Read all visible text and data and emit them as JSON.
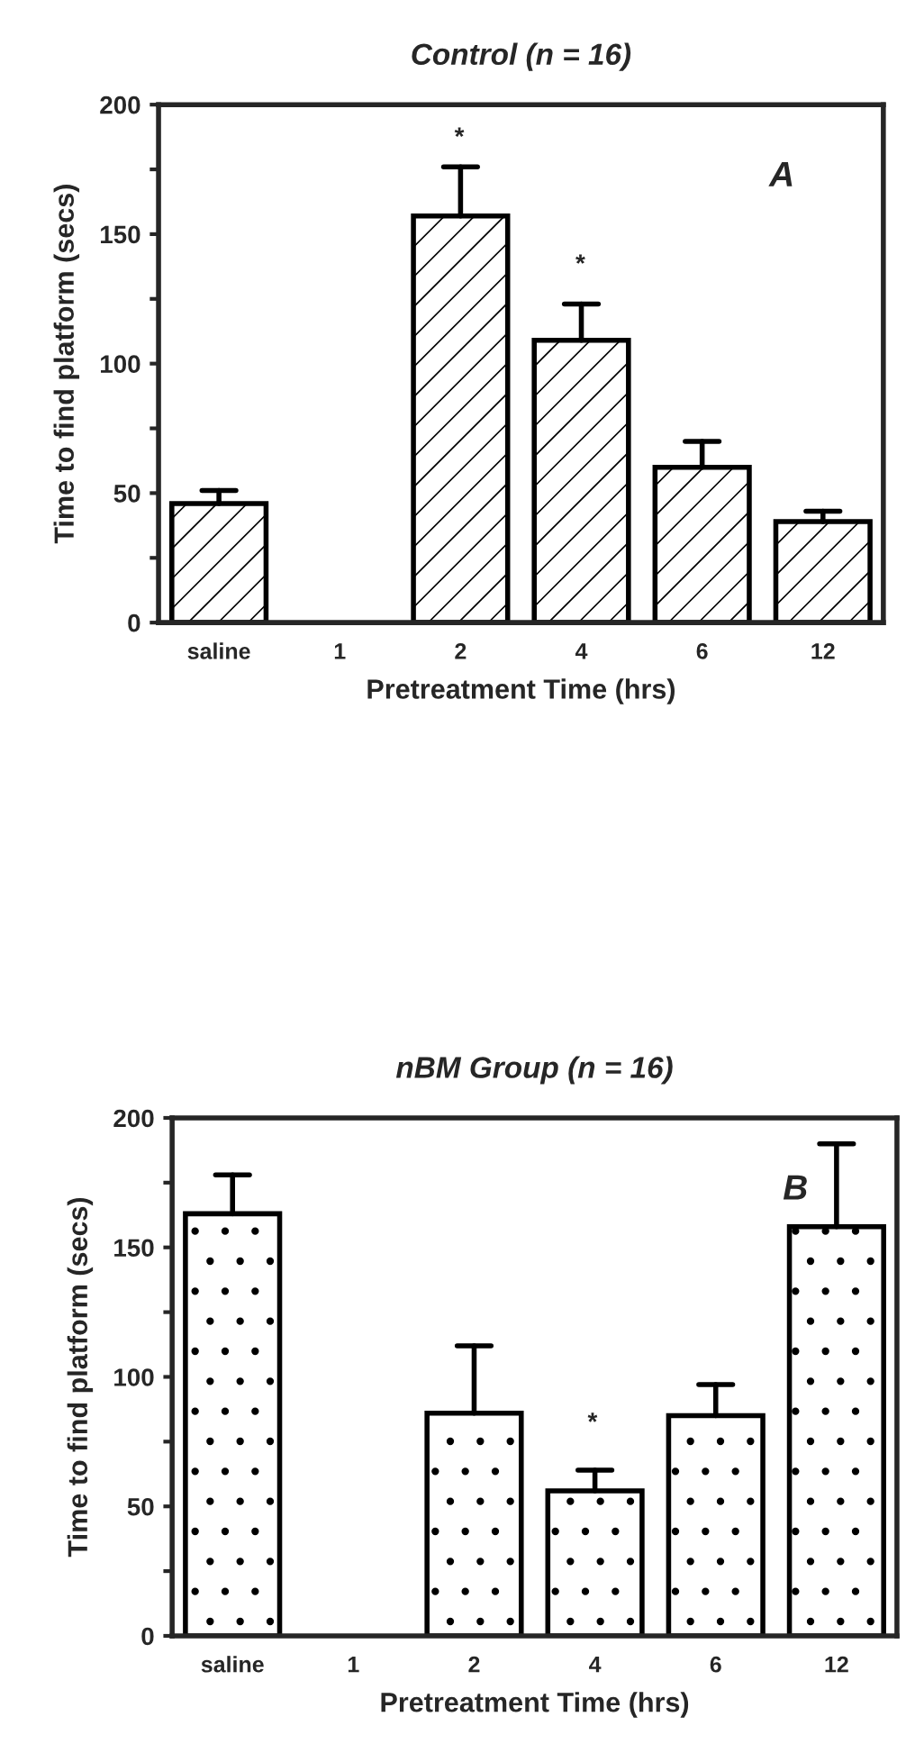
{
  "chart_data": [
    {
      "type": "bar",
      "title": "Control (n = 16)",
      "xlabel": "Pretreatment Time (hrs)",
      "ylabel": "Time to find platform (secs)",
      "categories": [
        "saline",
        "1",
        "2",
        "4",
        "6",
        "12"
      ],
      "values": [
        46,
        null,
        157,
        109,
        60,
        39
      ],
      "errors": [
        [
          46,
          51
        ],
        null,
        [
          157,
          176
        ],
        [
          109,
          123
        ],
        [
          60,
          70
        ],
        [
          39,
          43
        ]
      ],
      "color": "#000000",
      "ylim": [
        0,
        200
      ],
      "yticks": [
        0,
        {
          "value": 25,
          "label": null
        },
        50,
        {
          "value": 75,
          "label": null
        },
        100,
        {
          "value": 125,
          "label": null
        },
        150,
        {
          "value": 175,
          "label": null
        },
        200
      ],
      "annotations": [
        "*",
        "*",
        "A"
      ]
    },
    {
      "type": "bar",
      "title": "nBM Group (n = 16)",
      "xlabel": "Pretreatment Time (hrs)",
      "ylabel": "Time to find platform (secs)",
      "categories": [
        "saline",
        "1",
        "2",
        "4",
        "6",
        "12"
      ],
      "values": [
        163,
        null,
        86,
        56,
        85,
        158
      ],
      "errors": [
        [
          163,
          178
        ],
        null,
        [
          86,
          112
        ],
        [
          56,
          64
        ],
        [
          85,
          97
        ],
        [
          158,
          190
        ]
      ],
      "color": "#000000",
      "ylim": [
        0,
        200
      ],
      "yticks": [
        0,
        {
          "value": 25,
          "label": null
        },
        50,
        {
          "value": 75,
          "label": null
        },
        100,
        {
          "value": 125,
          "label": null
        },
        150,
        {
          "value": 175,
          "label": null
        },
        200
      ],
      "annotations": [
        "*",
        "B"
      ]
    }
  ]
}
